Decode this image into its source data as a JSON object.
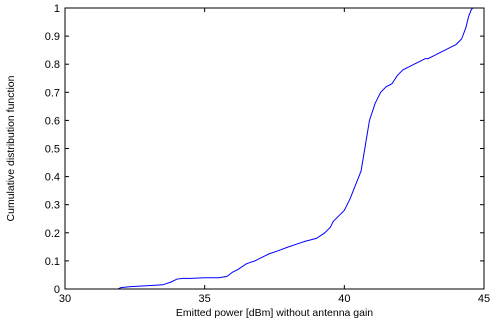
{
  "chart_data": {
    "type": "line",
    "title": "",
    "xlabel": "Emitted power [dBm] without antenna gain",
    "ylabel": "Cumulative distribution function",
    "xlim": [
      30,
      45
    ],
    "ylim": [
      0,
      1
    ],
    "xticks": [
      30,
      35,
      40,
      45
    ],
    "yticks": [
      0,
      0.1,
      0.2,
      0.3,
      0.4,
      0.5,
      0.6,
      0.7,
      0.8,
      0.9,
      1
    ],
    "grid": false,
    "legend": "none",
    "series": [
      {
        "color": "#0000ff",
        "x": [
          31.9,
          32.0,
          32.3,
          32.6,
          33.0,
          33.5,
          33.8,
          34.0,
          34.2,
          34.5,
          35.0,
          35.5,
          35.8,
          36.0,
          36.2,
          36.5,
          36.8,
          37.0,
          37.3,
          37.6,
          38.0,
          38.3,
          38.6,
          39.0,
          39.3,
          39.5,
          39.6,
          39.8,
          40.0,
          40.2,
          40.4,
          40.6,
          40.7,
          40.8,
          40.9,
          41.0,
          41.1,
          41.2,
          41.3,
          41.5,
          41.7,
          41.9,
          42.1,
          42.3,
          42.5,
          42.7,
          42.9,
          43.0,
          43.2,
          43.4,
          43.6,
          43.8,
          44.0,
          44.2,
          44.35,
          44.45,
          44.55,
          44.6
        ],
        "y": [
          0.0,
          0.005,
          0.008,
          0.01,
          0.012,
          0.015,
          0.025,
          0.035,
          0.038,
          0.038,
          0.04,
          0.04,
          0.045,
          0.06,
          0.07,
          0.09,
          0.1,
          0.11,
          0.125,
          0.135,
          0.15,
          0.16,
          0.17,
          0.18,
          0.2,
          0.22,
          0.24,
          0.26,
          0.28,
          0.32,
          0.37,
          0.42,
          0.48,
          0.54,
          0.6,
          0.63,
          0.66,
          0.68,
          0.7,
          0.72,
          0.73,
          0.76,
          0.78,
          0.79,
          0.8,
          0.81,
          0.82,
          0.82,
          0.83,
          0.84,
          0.85,
          0.86,
          0.87,
          0.89,
          0.93,
          0.97,
          0.995,
          1.0
        ]
      }
    ]
  }
}
